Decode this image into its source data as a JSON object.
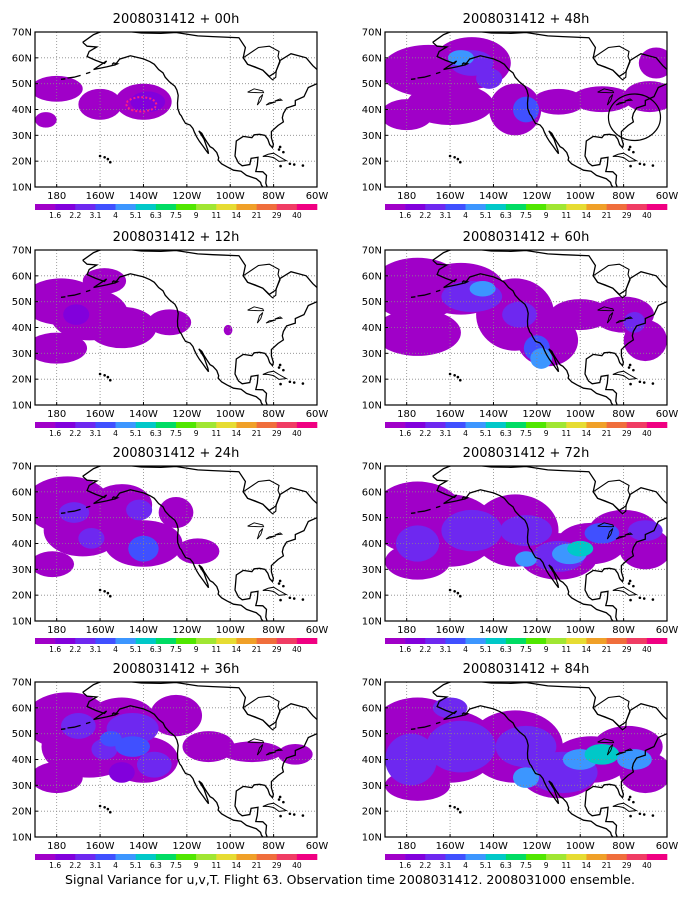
{
  "caption": "Signal Variance for u,v,T. Flight 63. Observation time 2008031412. 2008031000 ensemble.",
  "lat_labels": [
    "70N",
    "60N",
    "50N",
    "40N",
    "30N",
    "20N",
    "10N"
  ],
  "lon_labels": [
    "180",
    "160W",
    "140W",
    "120W",
    "100W",
    "80W",
    "60W"
  ],
  "colorbar": {
    "labels": [
      "1.6",
      "2.2",
      "3.1",
      "4",
      "5.1",
      "6.3",
      "7.5",
      "9",
      "11",
      "14",
      "21",
      "29",
      "40"
    ],
    "colors": [
      "#a000c8",
      "#8200dc",
      "#6e28f0",
      "#4050ff",
      "#3c96ff",
      "#00c8c8",
      "#00dc64",
      "#50e600",
      "#a0e632",
      "#e6dc32",
      "#f0a028",
      "#f06e3c",
      "#f03c64",
      "#f00082"
    ]
  },
  "panels": [
    {
      "title": "2008031412 + 00h",
      "hours": 0
    },
    {
      "title": "2008031412 + 48h",
      "hours": 48
    },
    {
      "title": "2008031412 + 12h",
      "hours": 12
    },
    {
      "title": "2008031412 + 60h",
      "hours": 60
    },
    {
      "title": "2008031412 + 24h",
      "hours": 24
    },
    {
      "title": "2008031412 + 72h",
      "hours": 72
    },
    {
      "title": "2008031412 + 36h",
      "hours": 36
    },
    {
      "title": "2008031412 + 84h",
      "hours": 84
    }
  ]
}
